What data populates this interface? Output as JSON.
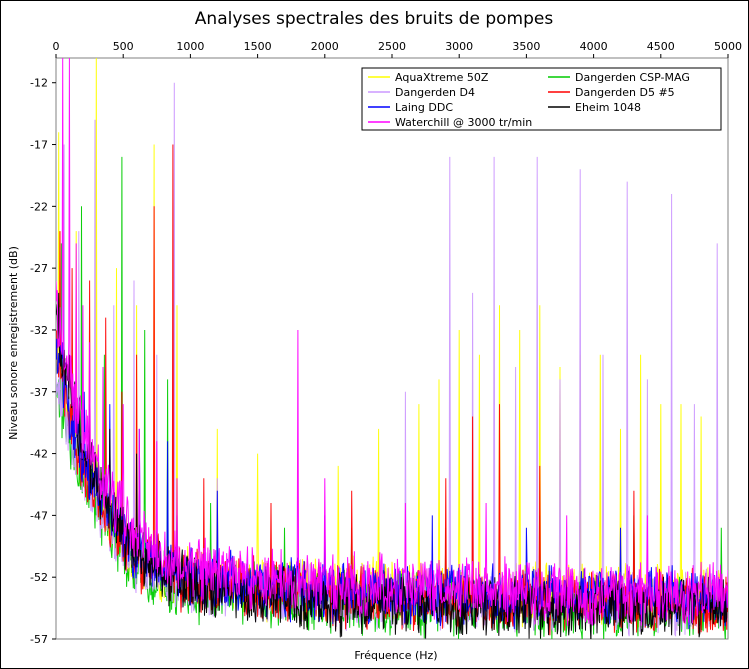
{
  "chart_data": {
    "type": "line",
    "title": "Analyses spectrales des bruits de pompes",
    "xlabel": "Fréquence (Hz)",
    "ylabel": "Niveau sonore enregistrement (dB)",
    "xlim": [
      0,
      5000
    ],
    "ylim": [
      -57,
      -10
    ],
    "xticks": [
      0,
      500,
      1000,
      1500,
      2000,
      2500,
      3000,
      3500,
      4000,
      4500,
      5000
    ],
    "yticks": [
      -12,
      -17,
      -22,
      -27,
      -32,
      -37,
      -42,
      -47,
      -52,
      -57
    ],
    "x_axis_position": "top",
    "grid": false,
    "legend_position": "top-right",
    "series": [
      {
        "name": "AquaXtreme 50Z",
        "color": "#ffff00",
        "noise_floor": [
          [
            0,
            -34
          ],
          [
            100,
            -40
          ],
          [
            200,
            -43
          ],
          [
            300,
            -45
          ],
          [
            400,
            -47
          ],
          [
            500,
            -49.5
          ],
          [
            600,
            -50.5
          ],
          [
            800,
            -51.5
          ],
          [
            1000,
            -52
          ],
          [
            1500,
            -52.8
          ],
          [
            2000,
            -53
          ],
          [
            3000,
            -53.3
          ],
          [
            4000,
            -53.5
          ],
          [
            5000,
            -53.5
          ]
        ],
        "peaks": [
          [
            20,
            -16
          ],
          [
            150,
            -24
          ],
          [
            300,
            -10
          ],
          [
            450,
            -27
          ],
          [
            600,
            -30
          ],
          [
            730,
            -17
          ],
          [
            900,
            -30
          ],
          [
            1200,
            -40
          ],
          [
            1500,
            -42
          ],
          [
            1800,
            -42
          ],
          [
            2100,
            -43
          ],
          [
            2400,
            -40
          ],
          [
            2700,
            -38
          ],
          [
            2850,
            -36
          ],
          [
            3000,
            -32
          ],
          [
            3150,
            -34
          ],
          [
            3300,
            -30
          ],
          [
            3450,
            -32
          ],
          [
            3600,
            -30
          ],
          [
            3750,
            -35
          ],
          [
            3900,
            -34
          ],
          [
            4050,
            -34
          ],
          [
            4200,
            -40
          ],
          [
            4350,
            -34
          ],
          [
            4500,
            -38
          ],
          [
            4650,
            -38
          ],
          [
            4800,
            -39
          ]
        ]
      },
      {
        "name": "Dangerden CSP-MAG",
        "color": "#00cc00",
        "noise_floor": [
          [
            0,
            -36
          ],
          [
            100,
            -41
          ],
          [
            200,
            -44
          ],
          [
            300,
            -46
          ],
          [
            400,
            -48
          ],
          [
            500,
            -50
          ],
          [
            600,
            -51.5
          ],
          [
            800,
            -52.5
          ],
          [
            1000,
            -53
          ],
          [
            1500,
            -53.5
          ],
          [
            2000,
            -54
          ],
          [
            3000,
            -54.3
          ],
          [
            4000,
            -54.5
          ],
          [
            5000,
            -54.5
          ]
        ],
        "peaks": [
          [
            40,
            -25
          ],
          [
            190,
            -22
          ],
          [
            360,
            -34
          ],
          [
            490,
            -18
          ],
          [
            660,
            -32
          ],
          [
            830,
            -36
          ],
          [
            1150,
            -46
          ],
          [
            1700,
            -48
          ],
          [
            2200,
            -48
          ],
          [
            2900,
            -48
          ],
          [
            3600,
            -47
          ],
          [
            4300,
            -47
          ],
          [
            4950,
            -48
          ]
        ]
      },
      {
        "name": "Dangerden D4",
        "color": "#cc99ff",
        "noise_floor": [
          [
            0,
            -35
          ],
          [
            100,
            -40
          ],
          [
            200,
            -43
          ],
          [
            300,
            -45.5
          ],
          [
            400,
            -47.5
          ],
          [
            500,
            -49.5
          ],
          [
            600,
            -51
          ],
          [
            800,
            -52
          ],
          [
            1000,
            -52.5
          ],
          [
            1500,
            -53
          ],
          [
            2000,
            -53.5
          ],
          [
            3000,
            -53.8
          ],
          [
            4000,
            -54
          ],
          [
            5000,
            -54
          ]
        ],
        "peaks": [
          [
            60,
            -17
          ],
          [
            170,
            -24
          ],
          [
            290,
            -15
          ],
          [
            430,
            -30
          ],
          [
            580,
            -28
          ],
          [
            750,
            -34
          ],
          [
            880,
            -12
          ],
          [
            1200,
            -44
          ],
          [
            1800,
            -44
          ],
          [
            2600,
            -37
          ],
          [
            2930,
            -18
          ],
          [
            3100,
            -29
          ],
          [
            3260,
            -18
          ],
          [
            3420,
            -35
          ],
          [
            3580,
            -18
          ],
          [
            3750,
            -36
          ],
          [
            3900,
            -19
          ],
          [
            4070,
            -34
          ],
          [
            4250,
            -20
          ],
          [
            4400,
            -36
          ],
          [
            4580,
            -21
          ],
          [
            4750,
            -38
          ],
          [
            4920,
            -25
          ]
        ]
      },
      {
        "name": "Dangerden D5 #5",
        "color": "#ff0000",
        "noise_floor": [
          [
            0,
            -34
          ],
          [
            100,
            -39
          ],
          [
            200,
            -43
          ],
          [
            300,
            -45
          ],
          [
            400,
            -47
          ],
          [
            500,
            -49
          ],
          [
            600,
            -50.5
          ],
          [
            800,
            -51.5
          ],
          [
            1000,
            -52.5
          ],
          [
            1500,
            -53
          ],
          [
            2000,
            -53.5
          ],
          [
            3000,
            -53.8
          ],
          [
            4000,
            -54
          ],
          [
            5000,
            -54
          ]
        ],
        "peaks": [
          [
            30,
            -24
          ],
          [
            120,
            -27
          ],
          [
            250,
            -28
          ],
          [
            370,
            -31
          ],
          [
            490,
            -37
          ],
          [
            600,
            -34
          ],
          [
            730,
            -22
          ],
          [
            870,
            -17
          ],
          [
            1100,
            -44
          ],
          [
            1600,
            -46
          ],
          [
            2200,
            -45
          ],
          [
            2900,
            -44
          ],
          [
            3100,
            -39
          ],
          [
            3300,
            -38
          ],
          [
            3600,
            -43
          ],
          [
            4300,
            -45
          ]
        ]
      },
      {
        "name": "Laing DDC",
        "color": "#0000ff",
        "noise_floor": [
          [
            0,
            -33
          ],
          [
            100,
            -39
          ],
          [
            200,
            -42
          ],
          [
            300,
            -44.5
          ],
          [
            400,
            -46.5
          ],
          [
            500,
            -48.5
          ],
          [
            600,
            -50
          ],
          [
            800,
            -51
          ],
          [
            1000,
            -52
          ],
          [
            1500,
            -52.7
          ],
          [
            2000,
            -53
          ],
          [
            3000,
            -53.5
          ],
          [
            4000,
            -53.6
          ],
          [
            5000,
            -53.7
          ]
        ],
        "peaks": [
          [
            50,
            -33
          ],
          [
            210,
            -37
          ],
          [
            400,
            -38
          ],
          [
            620,
            -40
          ],
          [
            830,
            -41
          ],
          [
            1200,
            -45
          ],
          [
            2000,
            -47
          ],
          [
            2800,
            -47
          ],
          [
            3500,
            -48
          ],
          [
            4200,
            -48
          ]
        ]
      },
      {
        "name": "Eheim 1048",
        "color": "#000000",
        "noise_floor": [
          [
            0,
            -31
          ],
          [
            100,
            -37
          ],
          [
            200,
            -41
          ],
          [
            300,
            -44
          ],
          [
            400,
            -46
          ],
          [
            500,
            -48.5
          ],
          [
            600,
            -50
          ],
          [
            800,
            -51.5
          ],
          [
            1000,
            -52.5
          ],
          [
            1500,
            -53.5
          ],
          [
            2000,
            -54
          ],
          [
            3000,
            -54.3
          ],
          [
            4000,
            -54.5
          ],
          [
            5000,
            -54.5
          ]
        ],
        "peaks": [
          [
            20,
            -29
          ],
          [
            100,
            -34
          ],
          [
            250,
            -38
          ],
          [
            400,
            -40
          ],
          [
            600,
            -42
          ],
          [
            900,
            -47
          ]
        ]
      },
      {
        "name": "Waterchill @ 3000 tr/min",
        "color": "#ff00ff",
        "noise_floor": [
          [
            0,
            -30
          ],
          [
            100,
            -36
          ],
          [
            200,
            -40
          ],
          [
            300,
            -43
          ],
          [
            400,
            -45
          ],
          [
            500,
            -47
          ],
          [
            600,
            -48.5
          ],
          [
            800,
            -50
          ],
          [
            1000,
            -51
          ],
          [
            1500,
            -52
          ],
          [
            2000,
            -52.5
          ],
          [
            3000,
            -53
          ],
          [
            4000,
            -53.2
          ],
          [
            5000,
            -53.3
          ]
        ],
        "peaks": [
          [
            50,
            -10
          ],
          [
            100,
            -10
          ],
          [
            150,
            -25
          ],
          [
            200,
            -30
          ],
          [
            250,
            -33
          ],
          [
            350,
            -35
          ],
          [
            500,
            -38
          ],
          [
            620,
            -40
          ],
          [
            750,
            -41
          ],
          [
            900,
            -44
          ],
          [
            1800,
            -32
          ],
          [
            2000,
            -44
          ],
          [
            2600,
            -46
          ],
          [
            3200,
            -46
          ],
          [
            3800,
            -47
          ],
          [
            4400,
            -47
          ]
        ]
      }
    ]
  }
}
